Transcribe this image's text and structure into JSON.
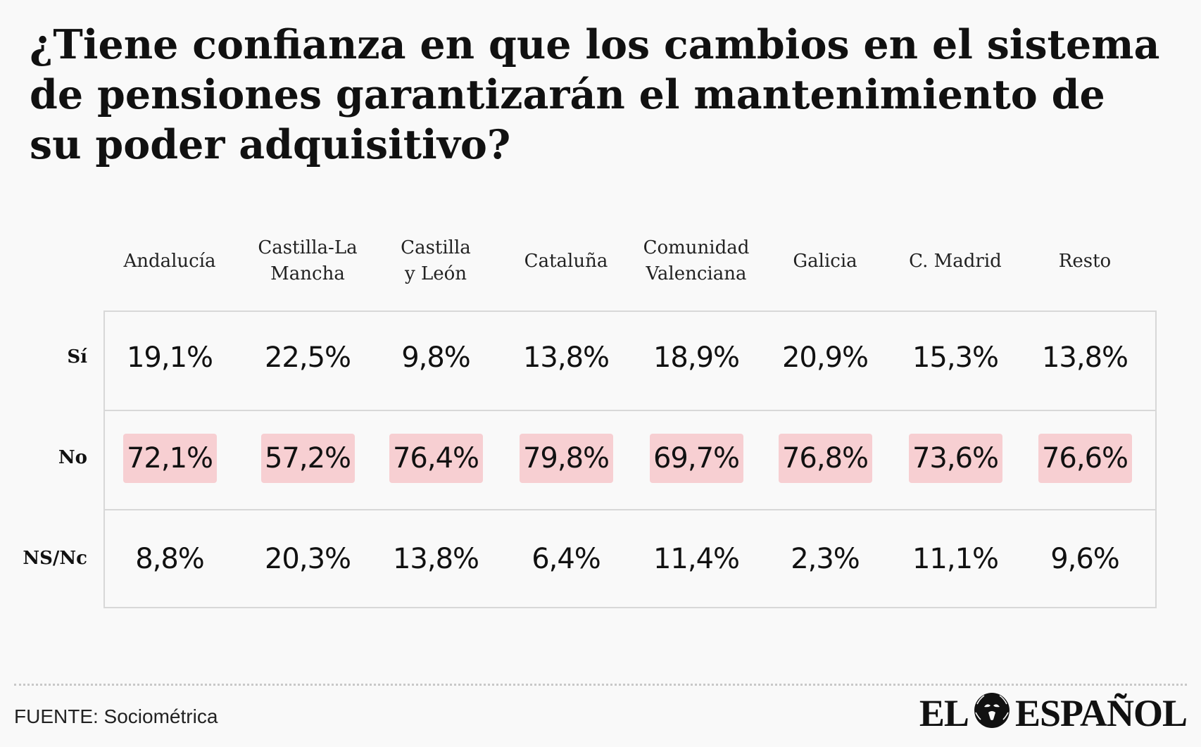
{
  "title": "¿Tiene confianza en que los cambios en el sistema de pensiones garantizarán el mantenimiento de su poder adquisitivo?",
  "colors": {
    "highlight": "#f7cfd2",
    "border": "#d8d8d8",
    "background": "#f9f9f9"
  },
  "chart_data": {
    "type": "table",
    "columns": [
      "Andalucía",
      "Castilla-La\nMancha",
      "Castilla\ny León",
      "Cataluña",
      "Comunidad\nValenciana",
      "Galicia",
      "C. Madrid",
      "Resto"
    ],
    "rows": [
      {
        "label": "Sí",
        "highlight": false,
        "values": [
          "19,1%",
          "22,5%",
          "9,8%",
          "13,8%",
          "18,9%",
          "20,9%",
          "15,3%",
          "13,8%"
        ]
      },
      {
        "label": "No",
        "highlight": true,
        "values": [
          "72,1%",
          "57,2%",
          "76,4%",
          "79,8%",
          "69,7%",
          "76,8%",
          "73,6%",
          "76,6%"
        ]
      },
      {
        "label": "NS/Nc",
        "highlight": false,
        "values": [
          "8,8%",
          "20,3%",
          "13,8%",
          "6,4%",
          "11,4%",
          "2,3%",
          "11,1%",
          "9,6%"
        ]
      }
    ]
  },
  "footer": {
    "source": "FUENTE: Sociométrica"
  },
  "logo": {
    "left": "EL",
    "right": "ESPAÑOL",
    "icon": "lion-head-icon"
  }
}
